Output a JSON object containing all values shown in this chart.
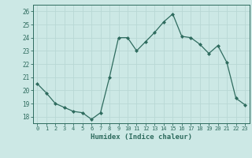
{
  "x": [
    0,
    1,
    2,
    3,
    4,
    5,
    6,
    7,
    8,
    9,
    10,
    11,
    12,
    13,
    14,
    15,
    16,
    17,
    18,
    19,
    20,
    21,
    22,
    23
  ],
  "y": [
    20.5,
    19.8,
    19.0,
    18.7,
    18.4,
    18.3,
    17.8,
    18.3,
    21.0,
    24.0,
    24.0,
    23.0,
    23.7,
    24.4,
    25.2,
    25.8,
    24.1,
    24.0,
    23.5,
    22.8,
    23.4,
    22.1,
    19.4,
    18.9
  ],
  "line_color": "#2e6b5e",
  "bg_color": "#cce8e5",
  "grid_color": "#b8d8d5",
  "xlabel": "Humidex (Indice chaleur)",
  "ylim": [
    17.5,
    26.5
  ],
  "xlim": [
    -0.5,
    23.5
  ],
  "yticks": [
    18,
    19,
    20,
    21,
    22,
    23,
    24,
    25,
    26
  ],
  "xticks": [
    0,
    1,
    2,
    3,
    4,
    5,
    6,
    7,
    8,
    9,
    10,
    11,
    12,
    13,
    14,
    15,
    16,
    17,
    18,
    19,
    20,
    21,
    22,
    23
  ],
  "tick_color": "#2e6b5e",
  "label_color": "#2e6b5e"
}
